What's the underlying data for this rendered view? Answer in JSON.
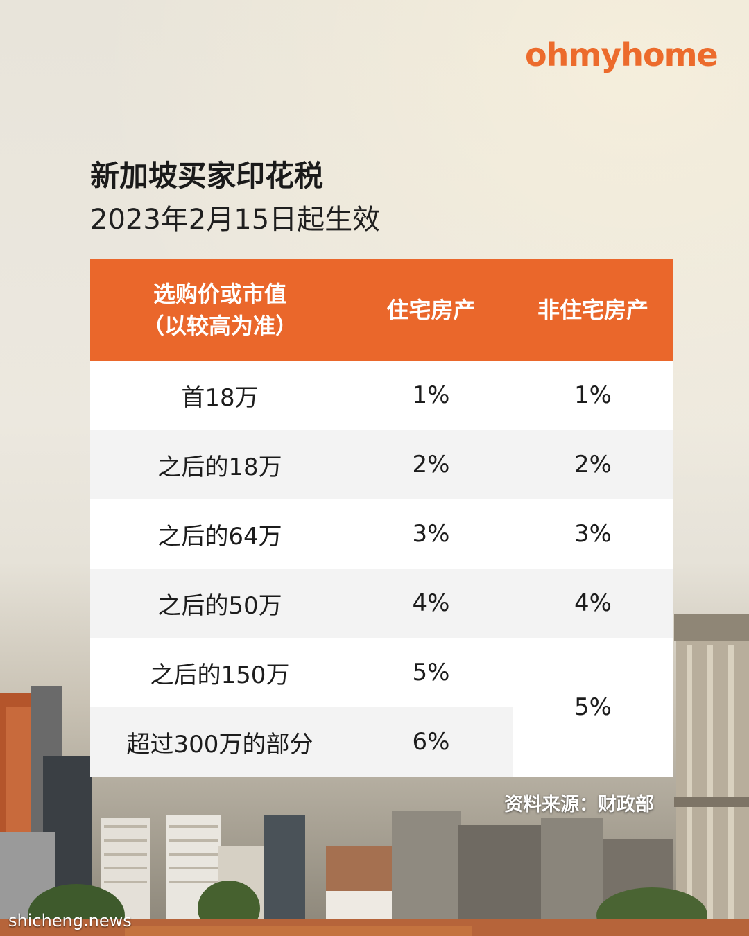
{
  "brand": {
    "logo_text": "ohmyhome",
    "color": "#ec6b2c"
  },
  "heading": {
    "title": "新加坡买家印花税",
    "subtitle": "2023年2月15日起生效"
  },
  "table": {
    "header_color": "#ea672b",
    "headers": {
      "col1_line1": "选购价或市值",
      "col1_line2": "（以较高为准）",
      "col2": "住宅房产",
      "col3": "非住宅房产"
    },
    "rows": [
      {
        "bracket": "首18万",
        "residential": "1%",
        "non_residential": "1%"
      },
      {
        "bracket": "之后的18万",
        "residential": "2%",
        "non_residential": "2%"
      },
      {
        "bracket": "之后的64万",
        "residential": "3%",
        "non_residential": "3%"
      },
      {
        "bracket": "之后的50万",
        "residential": "4%",
        "non_residential": "4%"
      },
      {
        "bracket": "之后的150万",
        "residential": "5%"
      },
      {
        "bracket": "超过300万的部分",
        "residential": "6%"
      }
    ],
    "merged_non_residential": "5%"
  },
  "source": "资料来源：财政部",
  "watermark": "shicheng.news"
}
